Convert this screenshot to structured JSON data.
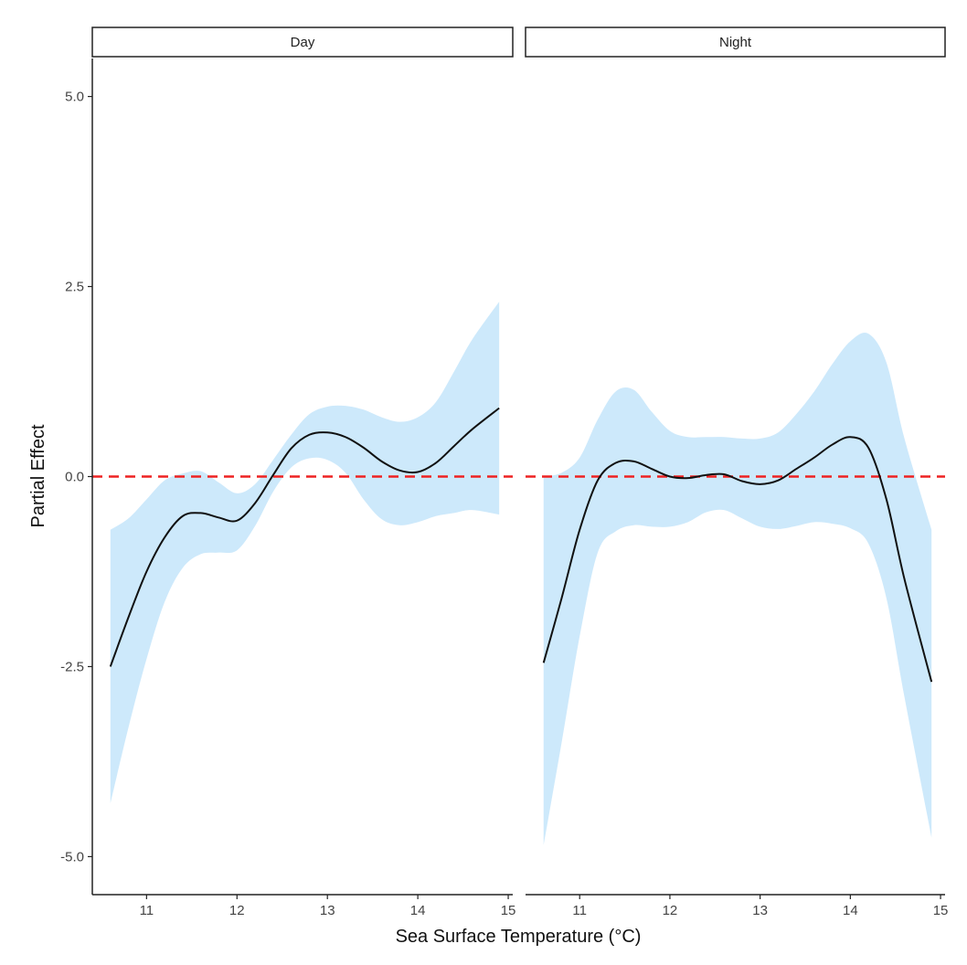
{
  "chart_data": {
    "type": "line",
    "xlabel": "Sea Surface Temperature (°C)",
    "ylabel": "Partial Effect",
    "ylim": [
      -5.5,
      5.5
    ],
    "yticks": [
      5.0,
      2.5,
      0.0,
      -2.5,
      -5.0
    ],
    "ytick_labels": [
      "5.0",
      "2.5",
      "0.0",
      "-2.5",
      "-5.0"
    ],
    "xlim": [
      10.4,
      15.05
    ],
    "xticks": [
      11,
      12,
      13,
      14,
      15
    ],
    "xtick_labels": [
      "11",
      "12",
      "13",
      "14",
      "15"
    ],
    "reference_line": {
      "y": 0,
      "style": "dashed",
      "color": "#ee2222"
    },
    "colors": {
      "ribbon": "#cde9fb",
      "line": "#111111",
      "frame": "#222222"
    },
    "panels": [
      {
        "label": "Day",
        "x": [
          10.6,
          10.8,
          11.0,
          11.2,
          11.4,
          11.6,
          11.8,
          12.0,
          12.2,
          12.4,
          12.6,
          12.8,
          13.0,
          13.2,
          13.4,
          13.6,
          13.8,
          14.0,
          14.2,
          14.4,
          14.6,
          14.9
        ],
        "fit": [
          -2.5,
          -1.85,
          -1.25,
          -0.8,
          -0.52,
          -0.48,
          -0.54,
          -0.58,
          -0.35,
          0.02,
          0.37,
          0.55,
          0.58,
          0.52,
          0.38,
          0.2,
          0.08,
          0.06,
          0.18,
          0.4,
          0.62,
          0.9
        ],
        "upper": [
          -0.7,
          -0.55,
          -0.3,
          -0.05,
          0.04,
          0.07,
          -0.08,
          -0.22,
          -0.1,
          0.22,
          0.55,
          0.82,
          0.92,
          0.93,
          0.88,
          0.78,
          0.72,
          0.78,
          0.98,
          1.38,
          1.8,
          2.3
        ],
        "lower": [
          -4.3,
          -3.3,
          -2.4,
          -1.65,
          -1.2,
          -1.02,
          -1.0,
          -0.97,
          -0.65,
          -0.2,
          0.12,
          0.24,
          0.22,
          0.05,
          -0.3,
          -0.56,
          -0.64,
          -0.6,
          -0.52,
          -0.48,
          -0.44,
          -0.5
        ]
      },
      {
        "label": "Night",
        "x": [
          10.6,
          10.8,
          11.0,
          11.2,
          11.4,
          11.6,
          11.8,
          12.0,
          12.2,
          12.4,
          12.6,
          12.8,
          13.0,
          13.2,
          13.4,
          13.6,
          13.8,
          14.0,
          14.2,
          14.4,
          14.6,
          14.9
        ],
        "fit": [
          -2.45,
          -1.6,
          -0.7,
          -0.05,
          0.18,
          0.2,
          0.1,
          0.0,
          -0.02,
          0.02,
          0.03,
          -0.06,
          -0.1,
          -0.05,
          0.1,
          0.25,
          0.42,
          0.52,
          0.38,
          -0.3,
          -1.35,
          -2.7
        ],
        "upper": [
          0.0,
          0.05,
          0.25,
          0.75,
          1.12,
          1.14,
          0.85,
          0.6,
          0.52,
          0.52,
          0.52,
          0.5,
          0.5,
          0.58,
          0.82,
          1.12,
          1.48,
          1.78,
          1.88,
          1.5,
          0.5,
          -0.7
        ],
        "lower": [
          -4.85,
          -3.5,
          -2.1,
          -1.0,
          -0.72,
          -0.64,
          -0.66,
          -0.66,
          -0.6,
          -0.47,
          -0.44,
          -0.55,
          -0.66,
          -0.69,
          -0.65,
          -0.6,
          -0.62,
          -0.68,
          -0.88,
          -1.6,
          -2.9,
          -4.75
        ]
      }
    ]
  }
}
